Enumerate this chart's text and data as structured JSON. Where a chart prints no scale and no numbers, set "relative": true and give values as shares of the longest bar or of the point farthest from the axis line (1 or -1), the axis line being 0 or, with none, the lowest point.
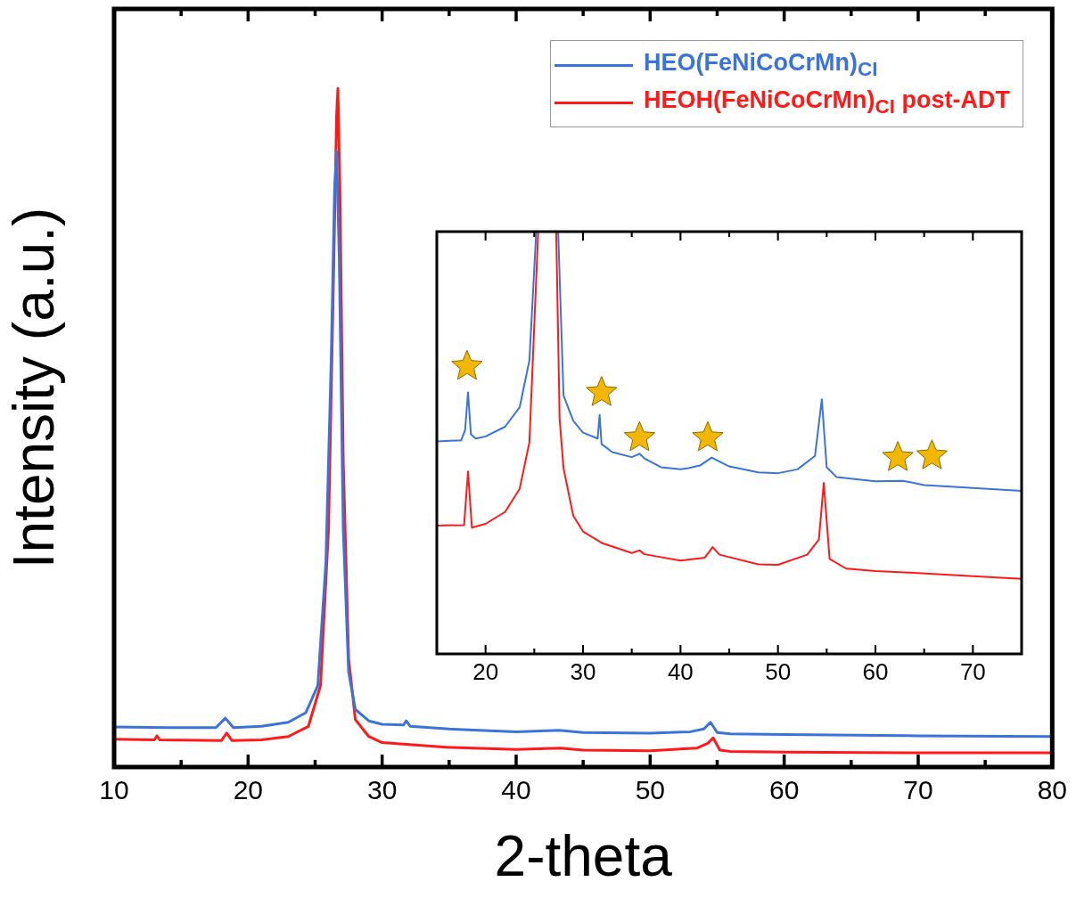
{
  "chart_data": [
    {
      "type": "line",
      "xlabel": "2-theta",
      "ylabel": "Intensity (a.u.)",
      "relative": true,
      "xlim": [
        10,
        80
      ],
      "xticks": [
        10,
        {
          "value": 15,
          "label": null
        },
        20,
        {
          "value": 25,
          "label": null
        },
        30,
        {
          "value": 35,
          "label": null
        },
        40,
        {
          "value": 45,
          "label": null
        },
        50,
        {
          "value": 55,
          "label": null
        },
        60,
        {
          "value": 65,
          "label": null
        },
        70,
        {
          "value": 75,
          "label": null
        },
        80
      ],
      "legend": "top right",
      "series": [
        {
          "name": "HEO(FeNiCoCrMn)$_{CI}$",
          "color": "#3b74d9",
          "x": [
            10,
            14,
            17.6,
            18.3,
            18.9,
            21,
            23,
            24.3,
            25.2,
            25.8,
            26.2,
            26.45,
            26.6,
            26.8,
            27.1,
            27.5,
            28,
            29,
            30,
            31.6,
            31.8,
            32.1,
            35,
            40,
            43.2,
            45,
            50,
            53,
            54,
            54.5,
            55,
            56,
            60,
            70,
            80
          ],
          "values": [
            0.059,
            0.058,
            0.058,
            0.072,
            0.058,
            0.06,
            0.066,
            0.08,
            0.12,
            0.3,
            0.6,
            0.85,
            0.907,
            0.75,
            0.35,
            0.14,
            0.085,
            0.068,
            0.063,
            0.062,
            0.068,
            0.06,
            0.056,
            0.052,
            0.054,
            0.051,
            0.05,
            0.052,
            0.056,
            0.066,
            0.051,
            0.049,
            0.048,
            0.046,
            0.045
          ]
        },
        {
          "name": "HEOH(FeNiCoCrMn)$_{CI}$ post-ADT",
          "color": "#ff1a1a",
          "x": [
            10,
            13,
            13.2,
            13.4,
            18,
            18.4,
            18.8,
            21,
            23,
            24.5,
            25.4,
            26,
            26.4,
            26.6,
            26.7,
            26.85,
            27.1,
            27.5,
            28,
            29,
            30,
            35,
            40,
            43.3,
            45,
            50,
            53.5,
            54.3,
            54.7,
            55.2,
            56,
            60,
            70,
            80
          ],
          "values": [
            0.041,
            0.04,
            0.046,
            0.04,
            0.039,
            0.05,
            0.039,
            0.04,
            0.045,
            0.06,
            0.12,
            0.35,
            0.75,
            0.96,
            1,
            0.85,
            0.45,
            0.16,
            0.07,
            0.045,
            0.036,
            0.029,
            0.026,
            0.028,
            0.025,
            0.024,
            0.028,
            0.035,
            0.043,
            0.025,
            0.023,
            0.022,
            0.021,
            0.021
          ]
        }
      ]
    },
    {
      "type": "line",
      "relative": true,
      "xlim": [
        15,
        75
      ],
      "xticks": [
        20,
        {
          "value": 25,
          "label": null
        },
        30,
        {
          "value": 35,
          "label": null
        },
        40,
        {
          "value": 45,
          "label": null
        },
        50,
        {
          "value": 55,
          "label": null
        },
        60,
        {
          "value": 65,
          "label": null
        },
        70
      ],
      "series": [
        {
          "color": "#3b74d9",
          "x": [
            15,
            17.5,
            17.9,
            18.2,
            18.5,
            19,
            20,
            22,
            23.5,
            24.5,
            25.2,
            26.3,
            27.45,
            28,
            29,
            30,
            31.5,
            31.7,
            31.9,
            33,
            35,
            35.8,
            36.3,
            38,
            40,
            40.8,
            42,
            43.2,
            45,
            48,
            50,
            52,
            53.8,
            54.5,
            55,
            56,
            60,
            62.8,
            65,
            70,
            75
          ],
          "values": [
            0.503,
            0.506,
            0.53,
            0.619,
            0.52,
            0.51,
            0.515,
            0.538,
            0.584,
            0.695,
            1,
            null,
            1,
            0.612,
            0.552,
            0.524,
            0.51,
            0.566,
            0.497,
            0.478,
            0.466,
            0.474,
            0.463,
            0.442,
            0.437,
            0.44,
            0.446,
            0.465,
            0.444,
            0.43,
            0.428,
            0.437,
            0.469,
            0.603,
            0.442,
            0.419,
            0.409,
            0.41,
            0.4,
            0.393,
            0.386
          ]
        },
        {
          "color": "#ff1a1a",
          "x": [
            15,
            17.8,
            18.2,
            18.6,
            20,
            22,
            23.5,
            24.5,
            25.4,
            26.3,
            27.25,
            27.6,
            28,
            29,
            30,
            32,
            35,
            35.8,
            36.3,
            40,
            42.5,
            43.3,
            44,
            48,
            50,
            53,
            54.2,
            54.7,
            55.3,
            57,
            60,
            63,
            70,
            75
          ],
          "values": [
            0.304,
            0.305,
            0.432,
            0.299,
            0.308,
            0.336,
            0.391,
            0.501,
            1,
            null,
            1,
            0.557,
            0.44,
            0.327,
            0.29,
            0.262,
            0.239,
            0.245,
            0.236,
            0.221,
            0.228,
            0.253,
            0.235,
            0.212,
            0.211,
            0.235,
            0.271,
            0.405,
            0.225,
            0.202,
            0.196,
            0.193,
            0.184,
            0.178
          ]
        },
        {
          "type": "scatter",
          "marker": "star",
          "color": "#f2b705",
          "x": [
            18.1,
            31.9,
            35.8,
            42.8,
            62.3,
            65.8
          ],
          "values": [
            0.681,
            0.619,
            0.512,
            0.512,
            0.465,
            0.469
          ]
        }
      ]
    }
  ]
}
